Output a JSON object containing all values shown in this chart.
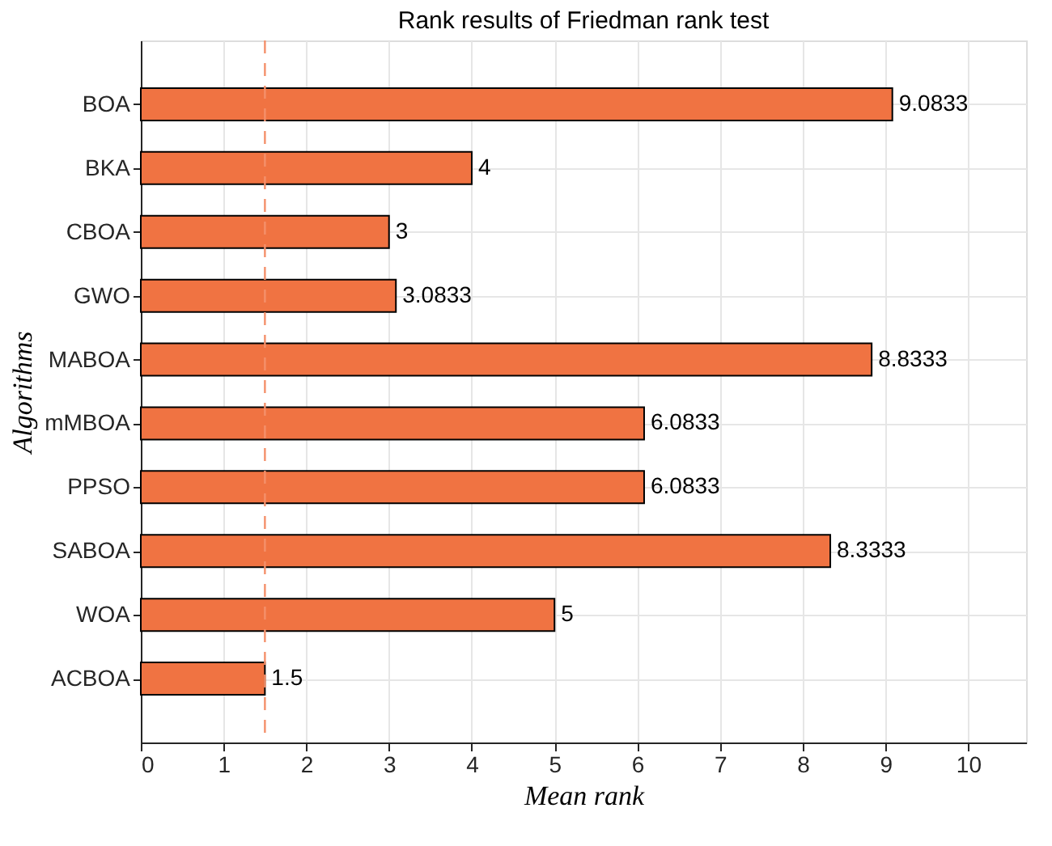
{
  "chart_data": {
    "type": "bar",
    "orientation": "horizontal",
    "title": "Rank results of Friedman rank test",
    "xlabel": "Mean rank",
    "ylabel": "Algorithms",
    "categories": [
      "BOA",
      "BKA",
      "CBOA",
      "GWO",
      "MABOA",
      "mMBOA",
      "PPSO",
      "SABOA",
      "WOA",
      "ACBOA"
    ],
    "values": [
      9.0833,
      4,
      3,
      3.0833,
      8.8333,
      6.0833,
      6.0833,
      8.3333,
      5,
      1.5
    ],
    "color": "#f07342",
    "xlim": [
      0,
      10.7
    ],
    "xticks": [
      0,
      1,
      2,
      3,
      4,
      5,
      6,
      7,
      8,
      9,
      10
    ],
    "ref_lines": [
      {
        "axis": "x",
        "value": 1.5,
        "color": "#f4906a",
        "line_style": "dashed"
      }
    ],
    "data_labels": true,
    "grid": true
  }
}
